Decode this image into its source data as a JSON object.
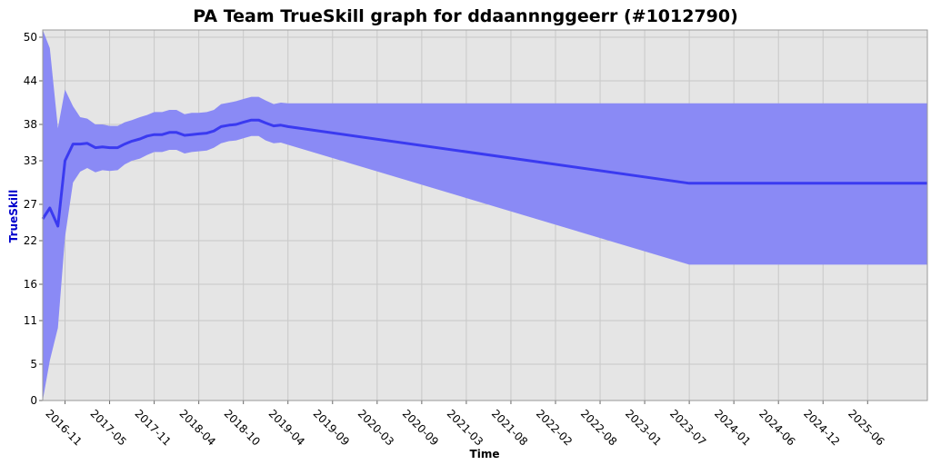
{
  "chart_data": {
    "type": "area",
    "title": "PA Team TrueSkill graph for ddaannnggeerr (#1012790)",
    "xlabel": "Time",
    "ylabel": "TrueSkill",
    "ylim": [
      0,
      51
    ],
    "yticks": [
      "0",
      "5",
      "11",
      "16",
      "22",
      "27",
      "33",
      "38",
      "44",
      "50"
    ],
    "xticks": [
      "2016-11",
      "2017-05",
      "2017-11",
      "2018-04",
      "2018-10",
      "2019-04",
      "2019-09",
      "2020-03",
      "2020-09",
      "2021-03",
      "2021-08",
      "2022-02",
      "2022-08",
      "2023-01",
      "2023-07",
      "2024-01",
      "2024-06",
      "2024-12",
      "2025-06"
    ],
    "xlim": [
      2016.58,
      2026.5
    ],
    "grid": true,
    "colors": {
      "line": "#3a3af0",
      "band": "#8a8af5",
      "plot_bg": "#e5e5e5",
      "ylabel": "#0000cc"
    },
    "series": [
      {
        "x": [
          2016.58,
          2016.66,
          2016.75,
          2016.83,
          2016.92,
          2017.0,
          2017.08,
          2017.17,
          2017.25,
          2017.33,
          2017.42,
          2017.5,
          2017.58,
          2017.67,
          2017.75,
          2017.83,
          2017.92,
          2018.0,
          2018.08,
          2018.17,
          2018.25,
          2018.33,
          2018.42,
          2018.5,
          2018.58,
          2018.67,
          2018.75,
          2018.83,
          2018.92,
          2019.0,
          2019.08,
          2019.17,
          2019.25,
          2019.33,
          2023.83,
          2026.5
        ],
        "mean": [
          25.0,
          26.5,
          24.0,
          33.0,
          35.3,
          35.3,
          35.4,
          34.8,
          34.9,
          34.8,
          34.8,
          35.3,
          35.7,
          36.0,
          36.4,
          36.6,
          36.6,
          36.9,
          36.9,
          36.5,
          36.6,
          36.7,
          36.8,
          37.1,
          37.7,
          37.9,
          38.0,
          38.3,
          38.6,
          38.6,
          38.2,
          37.8,
          37.9,
          37.7,
          29.9,
          29.9
        ],
        "upper": [
          51.0,
          48.5,
          37.5,
          42.8,
          40.5,
          39.0,
          38.8,
          38.0,
          38.0,
          37.8,
          37.8,
          38.3,
          38.6,
          39.0,
          39.3,
          39.7,
          39.7,
          40.0,
          40.0,
          39.4,
          39.6,
          39.6,
          39.7,
          40.0,
          40.8,
          41.0,
          41.2,
          41.5,
          41.8,
          41.8,
          41.3,
          40.8,
          41.0,
          40.9,
          40.9,
          40.9
        ],
        "lower": [
          0.0,
          5.5,
          10.0,
          22.5,
          30.0,
          31.5,
          32.0,
          31.4,
          31.7,
          31.6,
          31.7,
          32.5,
          33.0,
          33.3,
          33.8,
          34.2,
          34.2,
          34.5,
          34.5,
          34.0,
          34.2,
          34.3,
          34.4,
          34.8,
          35.4,
          35.7,
          35.8,
          36.1,
          36.4,
          36.4,
          35.8,
          35.4,
          35.5,
          35.2,
          18.7,
          18.7
        ]
      }
    ]
  }
}
